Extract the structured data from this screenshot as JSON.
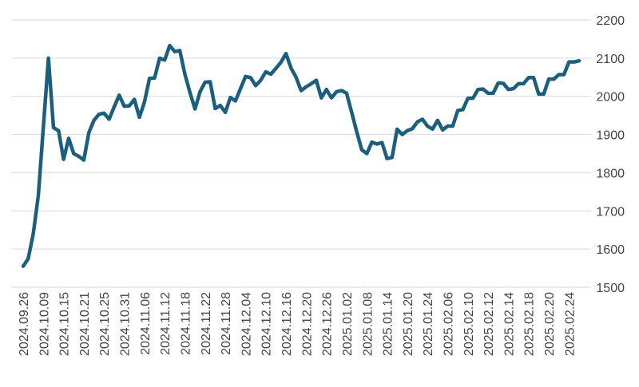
{
  "chart_data": {
    "type": "line",
    "title": "",
    "xlabel": "",
    "ylabel": "",
    "ylim": [
      1500,
      2200
    ],
    "yticks": [
      "1500",
      "1600",
      "1700",
      "1800",
      "1900",
      "2000",
      "2100",
      "2200"
    ],
    "y_axis_side": "right",
    "grid": "horizontal",
    "legend": "none",
    "colors": {
      "line": "#1b5e7e",
      "grid": "#d9d9d9",
      "text": "#444444"
    },
    "xtick_labels": [
      "2024.09.26",
      "2024.10.09",
      "2024.10.15",
      "2024.10.21",
      "2024.10.25",
      "2024.10.31",
      "2024.11.06",
      "2024.11.12",
      "2024.11.18",
      "2024.11.22",
      "2024.11.28",
      "2024.12.04",
      "2024.12.10",
      "2024.12.16",
      "2024.12.20",
      "2024.12.26",
      "2025.01.02",
      "2025.01.08",
      "2025.01.14",
      "2025.01.20",
      "2025.01.24",
      "2025.02.06",
      "2025.02.10",
      "2025.02.12",
      "2025.02.14",
      "2025.02.18",
      "2025.02.20",
      "2025.02.24"
    ],
    "tick_every": 4,
    "series": [
      {
        "values": [
          1555,
          1575,
          1640,
          1740,
          1920,
          2100,
          1918,
          1910,
          1835,
          1890,
          1850,
          1843,
          1833,
          1905,
          1937,
          1953,
          1956,
          1940,
          1972,
          2003,
          1974,
          1975,
          1992,
          1945,
          1985,
          2047,
          2048,
          2100,
          2095,
          2133,
          2117,
          2120,
          2058,
          2010,
          1967,
          2012,
          2037,
          2038,
          1968,
          1976,
          1958,
          1997,
          1988,
          2020,
          2052,
          2049,
          2028,
          2042,
          2064,
          2058,
          2073,
          2089,
          2112,
          2074,
          2050,
          2015,
          2025,
          2033,
          2042,
          1996,
          2018,
          1996,
          2012,
          2015,
          2008,
          1958,
          1907,
          1860,
          1850,
          1880,
          1875,
          1879,
          1837,
          1840,
          1914,
          1900,
          1910,
          1915,
          1933,
          1940,
          1922,
          1914,
          1937,
          1912,
          1922,
          1922,
          1963,
          1965,
          1995,
          1995,
          2018,
          2019,
          2008,
          2008,
          2035,
          2034,
          2018,
          2020,
          2033,
          2033,
          2049,
          2049,
          2006,
          2006,
          2045,
          2045,
          2057,
          2057,
          2090,
          2090,
          2093
        ]
      }
    ]
  }
}
